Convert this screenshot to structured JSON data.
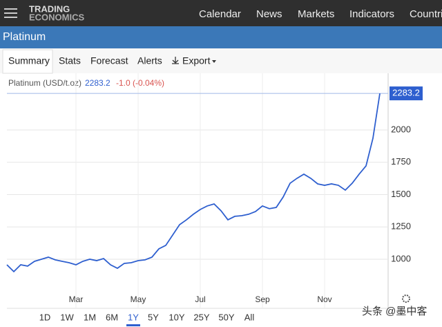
{
  "header": {
    "logo_top": "TRADING",
    "logo_bottom": "ECONOMICS",
    "nav": [
      "Calendar",
      "News",
      "Markets",
      "Indicators",
      "Countri"
    ]
  },
  "page_title": "Platinum",
  "tabs": [
    "Summary",
    "Stats",
    "Forecast",
    "Alerts",
    "Export"
  ],
  "legend": {
    "name": "Platinum (USD/t.oz)",
    "change": "-1.0 (-0.04%)"
  },
  "chart_data": {
    "type": "line",
    "categories": [
      null,
      null,
      null,
      null,
      null,
      null,
      null,
      null,
      null,
      null,
      "Mar",
      null,
      null,
      null,
      null,
      null,
      null,
      null,
      null,
      "May",
      null,
      null,
      null,
      null,
      null,
      null,
      null,
      null,
      "Jul",
      null,
      null,
      null,
      null,
      null,
      null,
      null,
      null,
      "Sep",
      null,
      null,
      null,
      null,
      null,
      null,
      null,
      null,
      "Nov",
      null,
      null,
      null,
      null,
      null,
      null,
      null,
      null
    ],
    "series": [
      {
        "name": "Platinum",
        "color": "#2e5fcf",
        "values": [
          957,
          904,
          957,
          947,
          984,
          1000,
          1016,
          995,
          984,
          973,
          957,
          984,
          1000,
          989,
          1005,
          957,
          930,
          968,
          973,
          989,
          995,
          1016,
          1080,
          1107,
          1187,
          1267,
          1305,
          1348,
          1385,
          1412,
          1428,
          1375,
          1305,
          1332,
          1337,
          1348,
          1369,
          1412,
          1391,
          1401,
          1481,
          1588,
          1626,
          1658,
          1626,
          1583,
          1572,
          1583,
          1572,
          1535,
          1588,
          1658,
          1722,
          1936,
          2283.2
        ]
      }
    ],
    "ylim": [
      743,
      2380
    ],
    "yticks": [
      1000,
      1250,
      1500,
      1750,
      2000
    ],
    "grid": true
  },
  "ranges": [
    "1D",
    "1W",
    "1M",
    "6M",
    "1Y",
    "5Y",
    "10Y",
    "25Y",
    "50Y",
    "All"
  ],
  "active_range": "1Y",
  "watermark": "头条 @墨中客"
}
